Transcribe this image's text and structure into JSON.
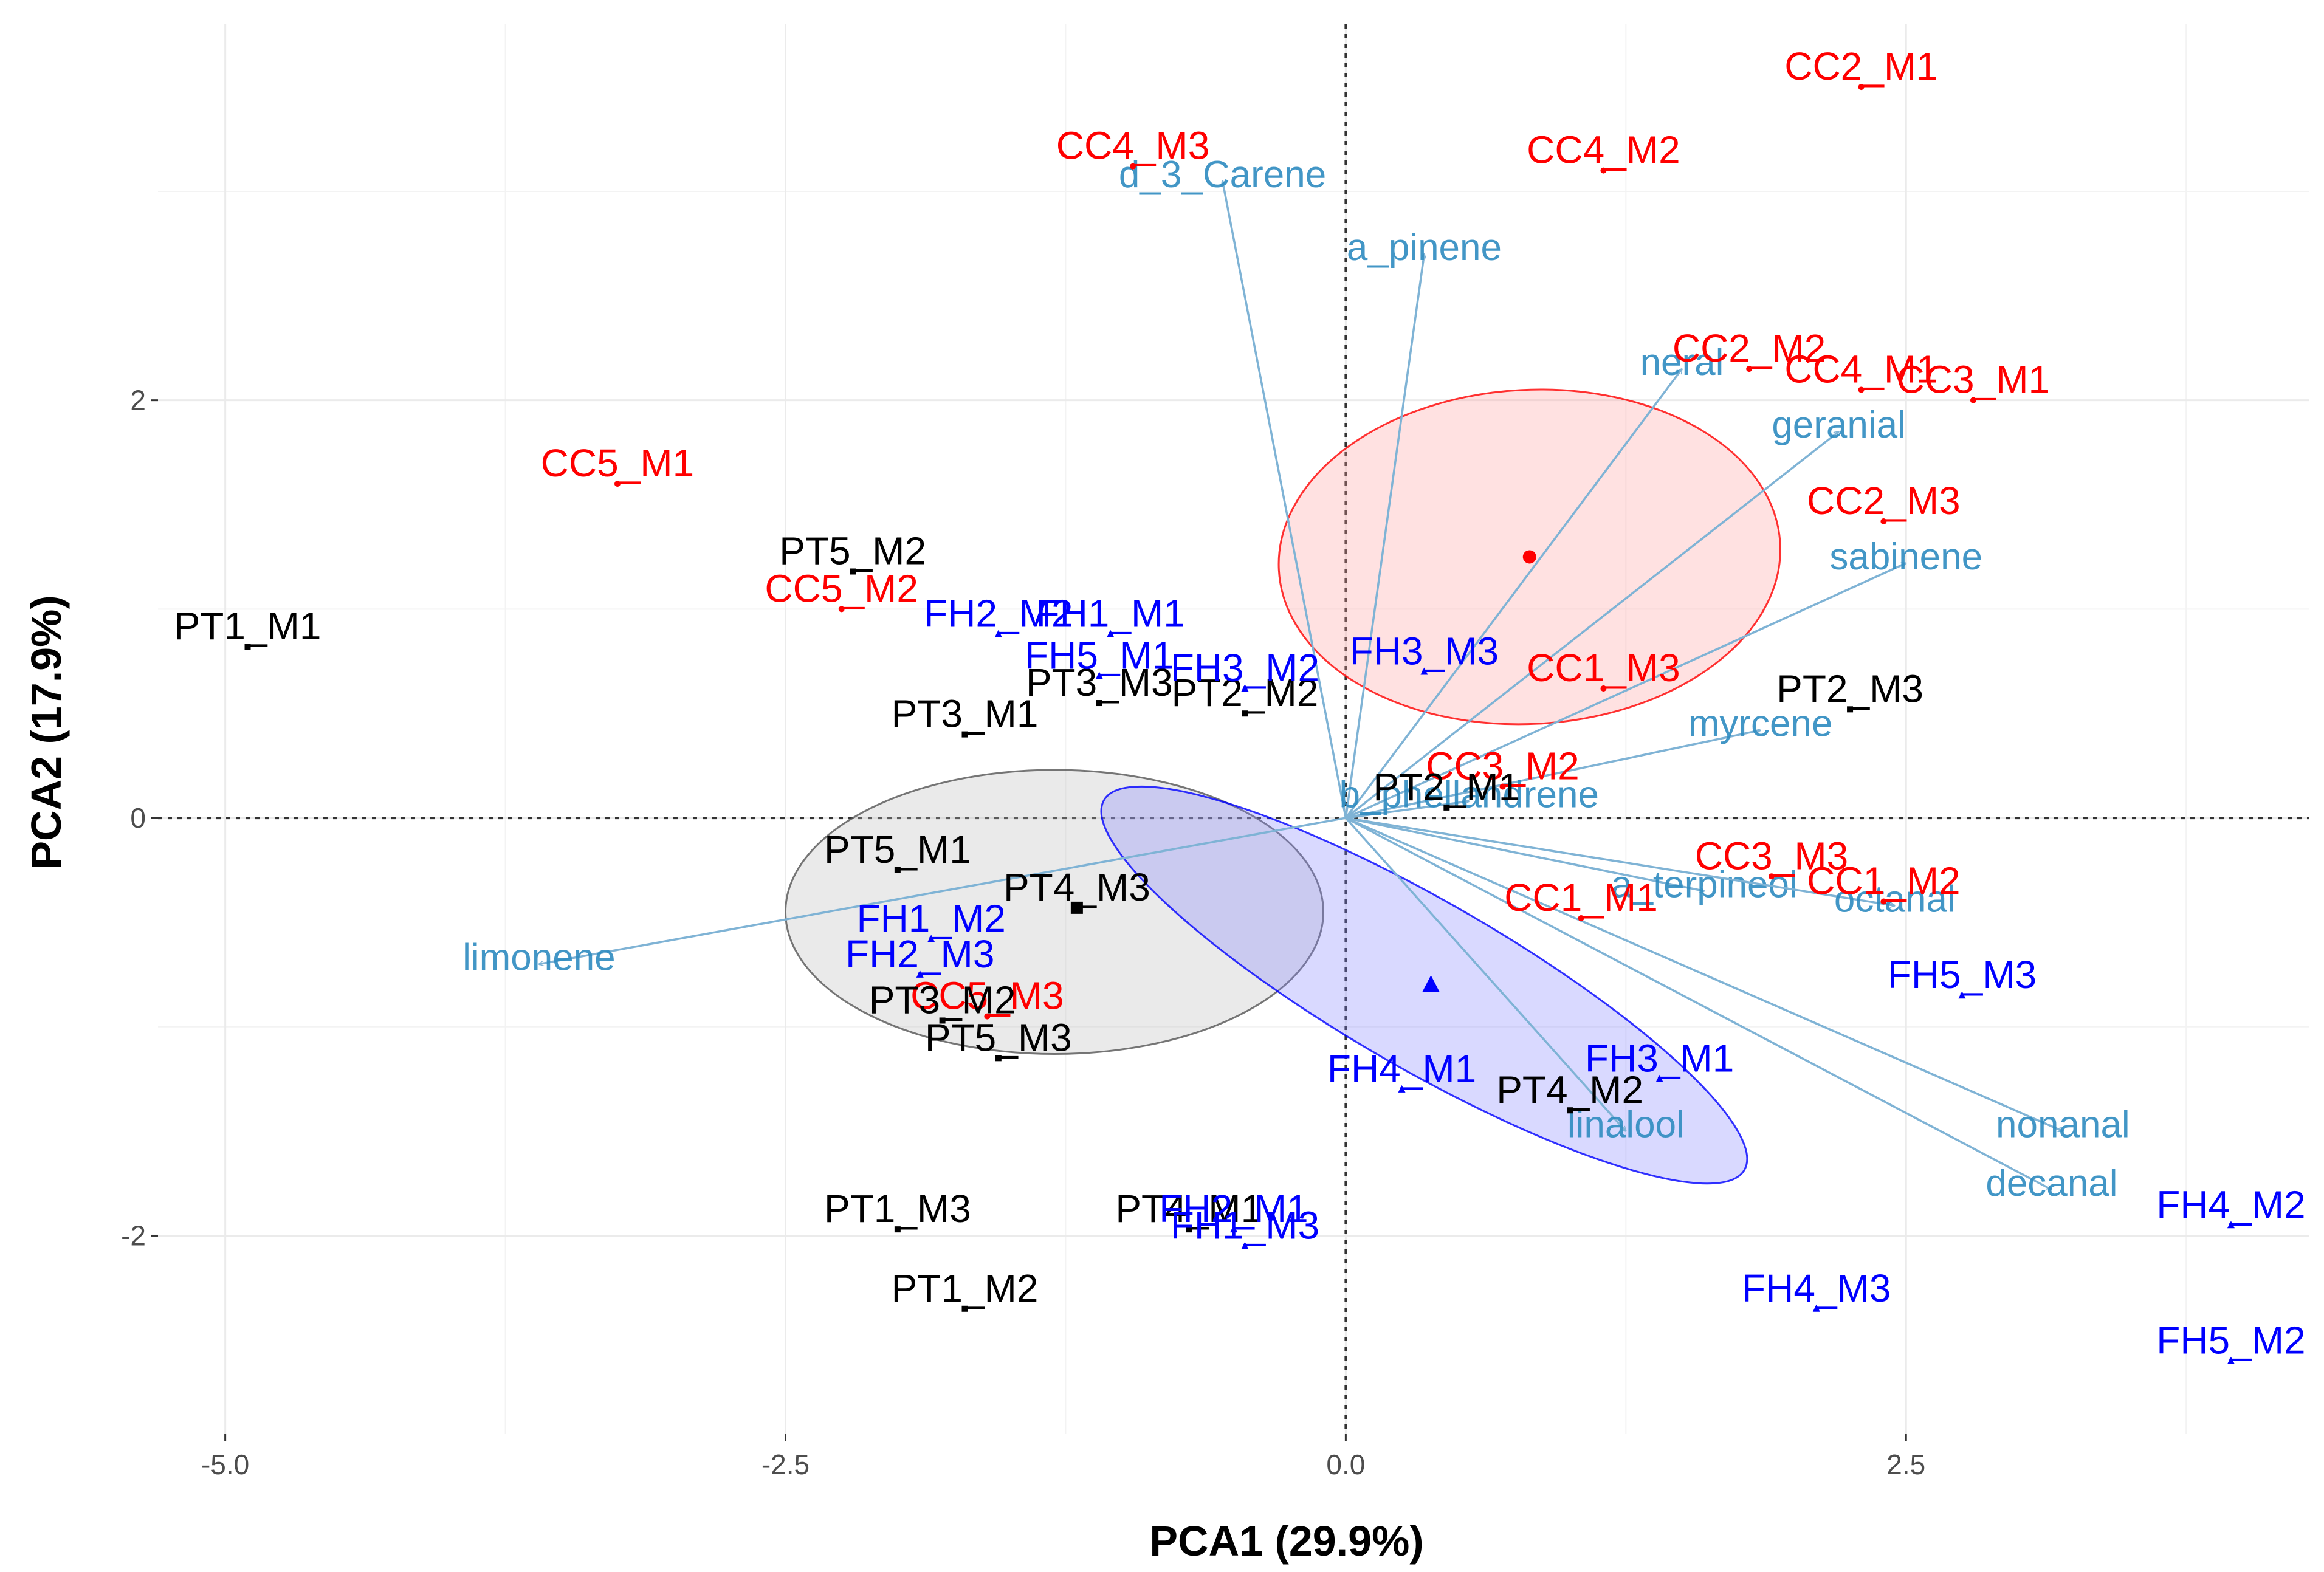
{
  "chart_data": {
    "type": "scatter",
    "subtype": "pca-biplot",
    "xlabel": "PCA1 (29.9%)",
    "ylabel": "PCA2 (17.9%)",
    "xlim": [
      -5.3,
      4.3
    ],
    "ylim": [
      -2.95,
      3.8
    ],
    "x_ticks": [
      -5.0,
      -2.5,
      0.0,
      2.5
    ],
    "x_tick_labels": [
      "-5.0",
      "-2.5",
      "0.0",
      "2.5"
    ],
    "y_ticks": [
      -2,
      0,
      2
    ],
    "y_tick_labels": [
      "-2",
      "0",
      "2"
    ],
    "grid": true,
    "groups": [
      {
        "name": "CC",
        "color": "#ff0000",
        "marker": "circle"
      },
      {
        "name": "PT",
        "color": "#000000",
        "marker": "square"
      },
      {
        "name": "FH",
        "color": "#0000ff",
        "marker": "triangle"
      }
    ],
    "points": [
      {
        "label": "CC2_M1",
        "group": "CC",
        "x": 2.3,
        "y": 3.5
      },
      {
        "label": "CC4_M2",
        "group": "CC",
        "x": 1.15,
        "y": 3.1
      },
      {
        "label": "CC4_M3",
        "group": "CC",
        "x": -0.95,
        "y": 3.12
      },
      {
        "label": "CC2_M2",
        "group": "CC",
        "x": 1.8,
        "y": 2.15
      },
      {
        "label": "CC4_M1",
        "group": "CC",
        "x": 2.3,
        "y": 2.05
      },
      {
        "label": "CC3_M1",
        "group": "CC",
        "x": 2.8,
        "y": 2.0
      },
      {
        "label": "CC2_M3",
        "group": "CC",
        "x": 2.4,
        "y": 1.42
      },
      {
        "label": "CC5_M1",
        "group": "CC",
        "x": -3.25,
        "y": 1.6
      },
      {
        "label": "CC5_M2",
        "group": "CC",
        "x": -2.25,
        "y": 1.0
      },
      {
        "label": "CC1_M3",
        "group": "CC",
        "x": 1.15,
        "y": 0.62
      },
      {
        "label": "CC3_M2",
        "group": "CC",
        "x": 0.7,
        "y": 0.15
      },
      {
        "label": "CC3_M3",
        "group": "CC",
        "x": 1.9,
        "y": -0.28
      },
      {
        "label": "CC1_M1",
        "group": "CC",
        "x": 1.05,
        "y": -0.48
      },
      {
        "label": "CC1_M2",
        "group": "CC",
        "x": 2.4,
        "y": -0.4
      },
      {
        "label": "CC5_M3",
        "group": "CC",
        "x": -1.6,
        "y": -0.95
      },
      {
        "label": "PT1_M1",
        "group": "PT",
        "x": -4.9,
        "y": 0.82
      },
      {
        "label": "PT5_M2",
        "group": "PT",
        "x": -2.2,
        "y": 1.18
      },
      {
        "label": "PT3_M1",
        "group": "PT",
        "x": -1.7,
        "y": 0.4
      },
      {
        "label": "PT3_M3",
        "group": "PT",
        "x": -1.1,
        "y": 0.55
      },
      {
        "label": "PT2_M2",
        "group": "PT",
        "x": -0.45,
        "y": 0.5
      },
      {
        "label": "PT2_M3",
        "group": "PT",
        "x": 2.25,
        "y": 0.52
      },
      {
        "label": "PT5_M1",
        "group": "PT",
        "x": -2.0,
        "y": -0.25
      },
      {
        "label": "PT2_M1",
        "group": "PT",
        "x": 0.45,
        "y": 0.05
      },
      {
        "label": "PT4_M3",
        "group": "PT",
        "x": -1.2,
        "y": -0.43
      },
      {
        "label": "PT3_M2",
        "group": "PT",
        "x": -1.8,
        "y": -0.97
      },
      {
        "label": "PT5_M3",
        "group": "PT",
        "x": -1.55,
        "y": -1.15
      },
      {
        "label": "PT4_M2",
        "group": "PT",
        "x": 1.0,
        "y": -1.4
      },
      {
        "label": "PT1_M3",
        "group": "PT",
        "x": -2.0,
        "y": -1.97
      },
      {
        "label": "PT4_M1",
        "group": "PT",
        "x": -0.7,
        "y": -1.97
      },
      {
        "label": "PT1_M2",
        "group": "PT",
        "x": -1.7,
        "y": -2.35
      },
      {
        "label": "FH2_M2",
        "group": "FH",
        "x": -1.55,
        "y": 0.88
      },
      {
        "label": "FH1_M1",
        "group": "FH",
        "x": -1.05,
        "y": 0.88
      },
      {
        "label": "FH5_M1",
        "group": "FH",
        "x": -1.1,
        "y": 0.68
      },
      {
        "label": "FH3_M2",
        "group": "FH",
        "x": -0.45,
        "y": 0.62
      },
      {
        "label": "FH3_M3",
        "group": "FH",
        "x": 0.35,
        "y": 0.7
      },
      {
        "label": "FH1_M2",
        "group": "FH",
        "x": -1.85,
        "y": -0.58
      },
      {
        "label": "FH2_M3",
        "group": "FH",
        "x": -1.9,
        "y": -0.75
      },
      {
        "label": "FH5_M3",
        "group": "FH",
        "x": 2.75,
        "y": -0.85
      },
      {
        "label": "FH4_M1",
        "group": "FH",
        "x": 0.25,
        "y": -1.3
      },
      {
        "label": "FH3_M1",
        "group": "FH",
        "x": 1.4,
        "y": -1.25
      },
      {
        "label": "FH2_M1",
        "group": "FH",
        "x": -0.5,
        "y": -1.97
      },
      {
        "label": "FH1_M3",
        "group": "FH",
        "x": -0.45,
        "y": -2.05
      },
      {
        "label": "FH4_M3",
        "group": "FH",
        "x": 2.1,
        "y": -2.35
      },
      {
        "label": "FH4_M2",
        "group": "FH",
        "x": 3.95,
        "y": -1.95
      },
      {
        "label": "FH5_M2",
        "group": "FH",
        "x": 3.95,
        "y": -2.6
      }
    ],
    "loadings": [
      {
        "label": "d_3_Carene",
        "x": -0.55,
        "y": 3.05
      },
      {
        "label": "a_pinene",
        "x": 0.35,
        "y": 2.7
      },
      {
        "label": "neral",
        "x": 1.5,
        "y": 2.15
      },
      {
        "label": "geranial",
        "x": 2.2,
        "y": 1.85
      },
      {
        "label": "sabinene",
        "x": 2.5,
        "y": 1.22
      },
      {
        "label": "myrcene",
        "x": 1.85,
        "y": 0.42
      },
      {
        "label": "b_phellandrene",
        "x": 0.55,
        "y": 0.08
      },
      {
        "label": "a_terpineol",
        "x": 1.6,
        "y": -0.35
      },
      {
        "label": "octanal",
        "x": 2.45,
        "y": -0.42
      },
      {
        "label": "limonene",
        "x": -3.6,
        "y": -0.7
      },
      {
        "label": "linalool",
        "x": 1.25,
        "y": -1.5
      },
      {
        "label": "nonanal",
        "x": 3.2,
        "y": -1.5
      },
      {
        "label": "decanal",
        "x": 3.15,
        "y": -1.78
      }
    ],
    "ellipses": [
      {
        "group": "CC",
        "cx": 0.82,
        "cy": 1.25,
        "rx": 1.12,
        "ry": 0.8,
        "angle_deg": 3,
        "centroid": [
          0.82,
          1.25
        ]
      },
      {
        "group": "PT",
        "cx": -1.3,
        "cy": -0.45,
        "rx": 1.2,
        "ry": 0.68,
        "angle_deg": 0,
        "centroid": [
          -1.2,
          -0.43
        ]
      },
      {
        "group": "FH",
        "cx": 0.35,
        "cy": -0.8,
        "rx": 1.65,
        "ry": 0.4,
        "angle_deg": -30,
        "centroid": [
          0.38,
          -0.8
        ]
      }
    ]
  },
  "colors": {
    "CC": "#ff0000",
    "PT": "#000000",
    "FH": "#0000ff",
    "loading": "#2e8bc0",
    "loading_line": "#7fb3d5",
    "grid": "#ebebeb"
  }
}
